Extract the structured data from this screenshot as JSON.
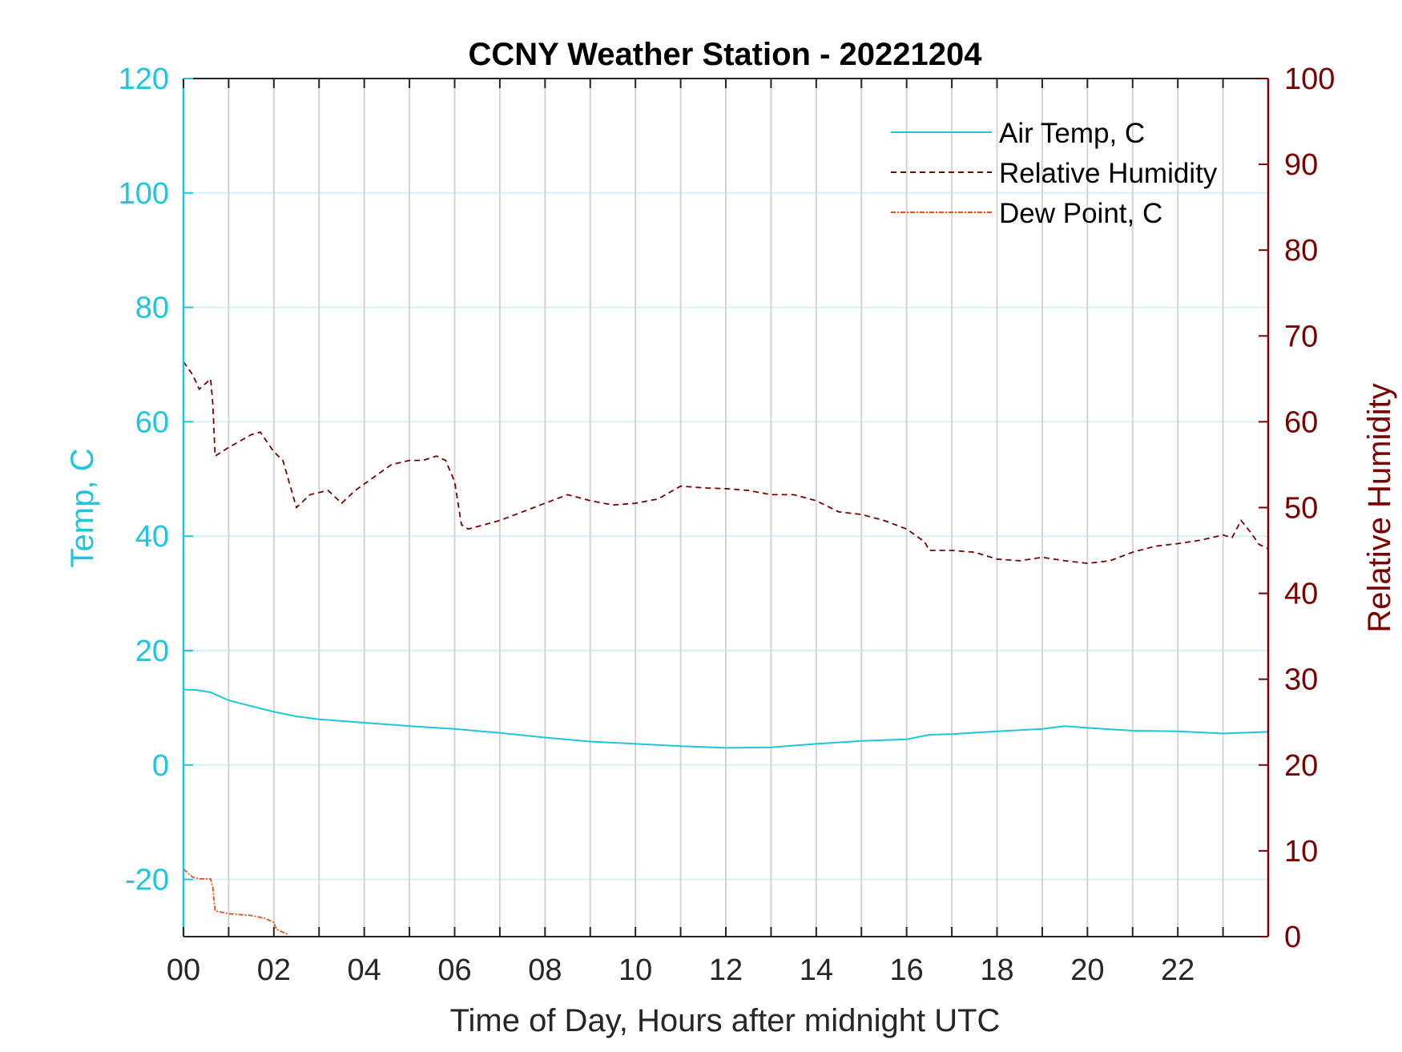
{
  "chart_data": {
    "type": "line",
    "title": "CCNY Weather Station - 20221204",
    "xlabel": "Time of Day, Hours after midnight UTC",
    "ylabel_left": "Temp, C",
    "ylabel_right": "Relative Humidity",
    "xlim": [
      0,
      24
    ],
    "ylim_left": [
      -30,
      120
    ],
    "ylim_right": [
      0,
      100
    ],
    "x_ticks": [
      0,
      2,
      4,
      6,
      8,
      10,
      12,
      14,
      16,
      18,
      20,
      22
    ],
    "x_tick_labels": [
      "00",
      "02",
      "04",
      "06",
      "08",
      "10",
      "12",
      "14",
      "16",
      "18",
      "20",
      "22"
    ],
    "y_left_ticks": [
      -20,
      0,
      20,
      40,
      60,
      80,
      100,
      120
    ],
    "y_right_ticks": [
      0,
      10,
      20,
      30,
      40,
      50,
      60,
      70,
      80,
      90,
      100
    ],
    "grid": true,
    "legend_position": "top-right",
    "colors": {
      "temp": "#1FC6DB",
      "humidity": "#7A0000",
      "dewpoint": "#D95319",
      "grid_x": "#D4D4D4",
      "grid_y": "#D6F1F6"
    },
    "series": [
      {
        "name": "Air Temp, C",
        "axis": "left",
        "style": "solid",
        "x": [
          0,
          0.3,
          0.6,
          1,
          1.5,
          2,
          2.5,
          3,
          4,
          5,
          6,
          7,
          8,
          9,
          10,
          11,
          12,
          13,
          14,
          15,
          16,
          16.5,
          17,
          18,
          19,
          19.5,
          20,
          21,
          22,
          23,
          24
        ],
        "y": [
          13.2,
          13.1,
          12.7,
          11.3,
          10.3,
          9.3,
          8.5,
          8.0,
          7.4,
          6.8,
          6.3,
          5.6,
          4.8,
          4.1,
          3.7,
          3.3,
          3.0,
          3.1,
          3.7,
          4.2,
          4.5,
          5.3,
          5.4,
          5.9,
          6.3,
          6.8,
          6.5,
          6.0,
          5.9,
          5.5,
          5.8
        ]
      },
      {
        "name": "Relative Humidity",
        "axis": "right",
        "style": "dashed",
        "x": [
          0,
          0.2,
          0.35,
          0.5,
          0.6,
          0.65,
          0.7,
          1.0,
          1.5,
          1.7,
          2.0,
          2.2,
          2.5,
          2.8,
          3.2,
          3.5,
          3.8,
          4.2,
          4.6,
          5.0,
          5.3,
          5.6,
          5.8,
          6.0,
          6.15,
          6.3,
          7.0,
          7.5,
          8.0,
          8.5,
          9.0,
          9.5,
          10.0,
          10.5,
          11.0,
          11.5,
          12.0,
          12.5,
          13.0,
          13.5,
          14.0,
          14.5,
          15.0,
          15.5,
          16.0,
          16.4,
          16.5,
          17.0,
          17.5,
          18.0,
          18.5,
          19.0,
          19.5,
          20.0,
          20.5,
          21.0,
          21.5,
          22.0,
          22.5,
          23.0,
          23.2,
          23.4,
          23.6,
          23.8,
          24.0
        ],
        "y": [
          67,
          65.5,
          63.8,
          64.5,
          65,
          62,
          56,
          57,
          58.5,
          58.8,
          56.5,
          55.5,
          50,
          51.5,
          52,
          50.5,
          52,
          53.5,
          55,
          55.5,
          55.5,
          56,
          55.5,
          53,
          48,
          47.5,
          48.5,
          49.5,
          50.5,
          51.5,
          50.8,
          50.3,
          50.5,
          51,
          52.5,
          52.3,
          52.2,
          52,
          51.5,
          51.5,
          50.8,
          49.5,
          49.2,
          48.5,
          47.5,
          46,
          45,
          45,
          44.8,
          44,
          43.8,
          44.2,
          43.8,
          43.5,
          43.8,
          44.8,
          45.5,
          45.8,
          46.2,
          46.8,
          46.5,
          48.5,
          47.2,
          45.7,
          45.2
        ]
      },
      {
        "name": "Dew Point, C",
        "axis": "left",
        "style": "dashdot",
        "x": [
          0,
          0.2,
          0.35,
          0.5,
          0.6,
          0.65,
          0.7,
          1.0,
          1.5,
          1.8,
          2.0,
          2.05,
          2.3
        ],
        "y": [
          -18.2,
          -19.6,
          -19.9,
          -19.9,
          -19.9,
          -21.5,
          -25.5,
          -26.0,
          -26.3,
          -26.8,
          -27.5,
          -28.7,
          -29.6
        ]
      }
    ]
  }
}
